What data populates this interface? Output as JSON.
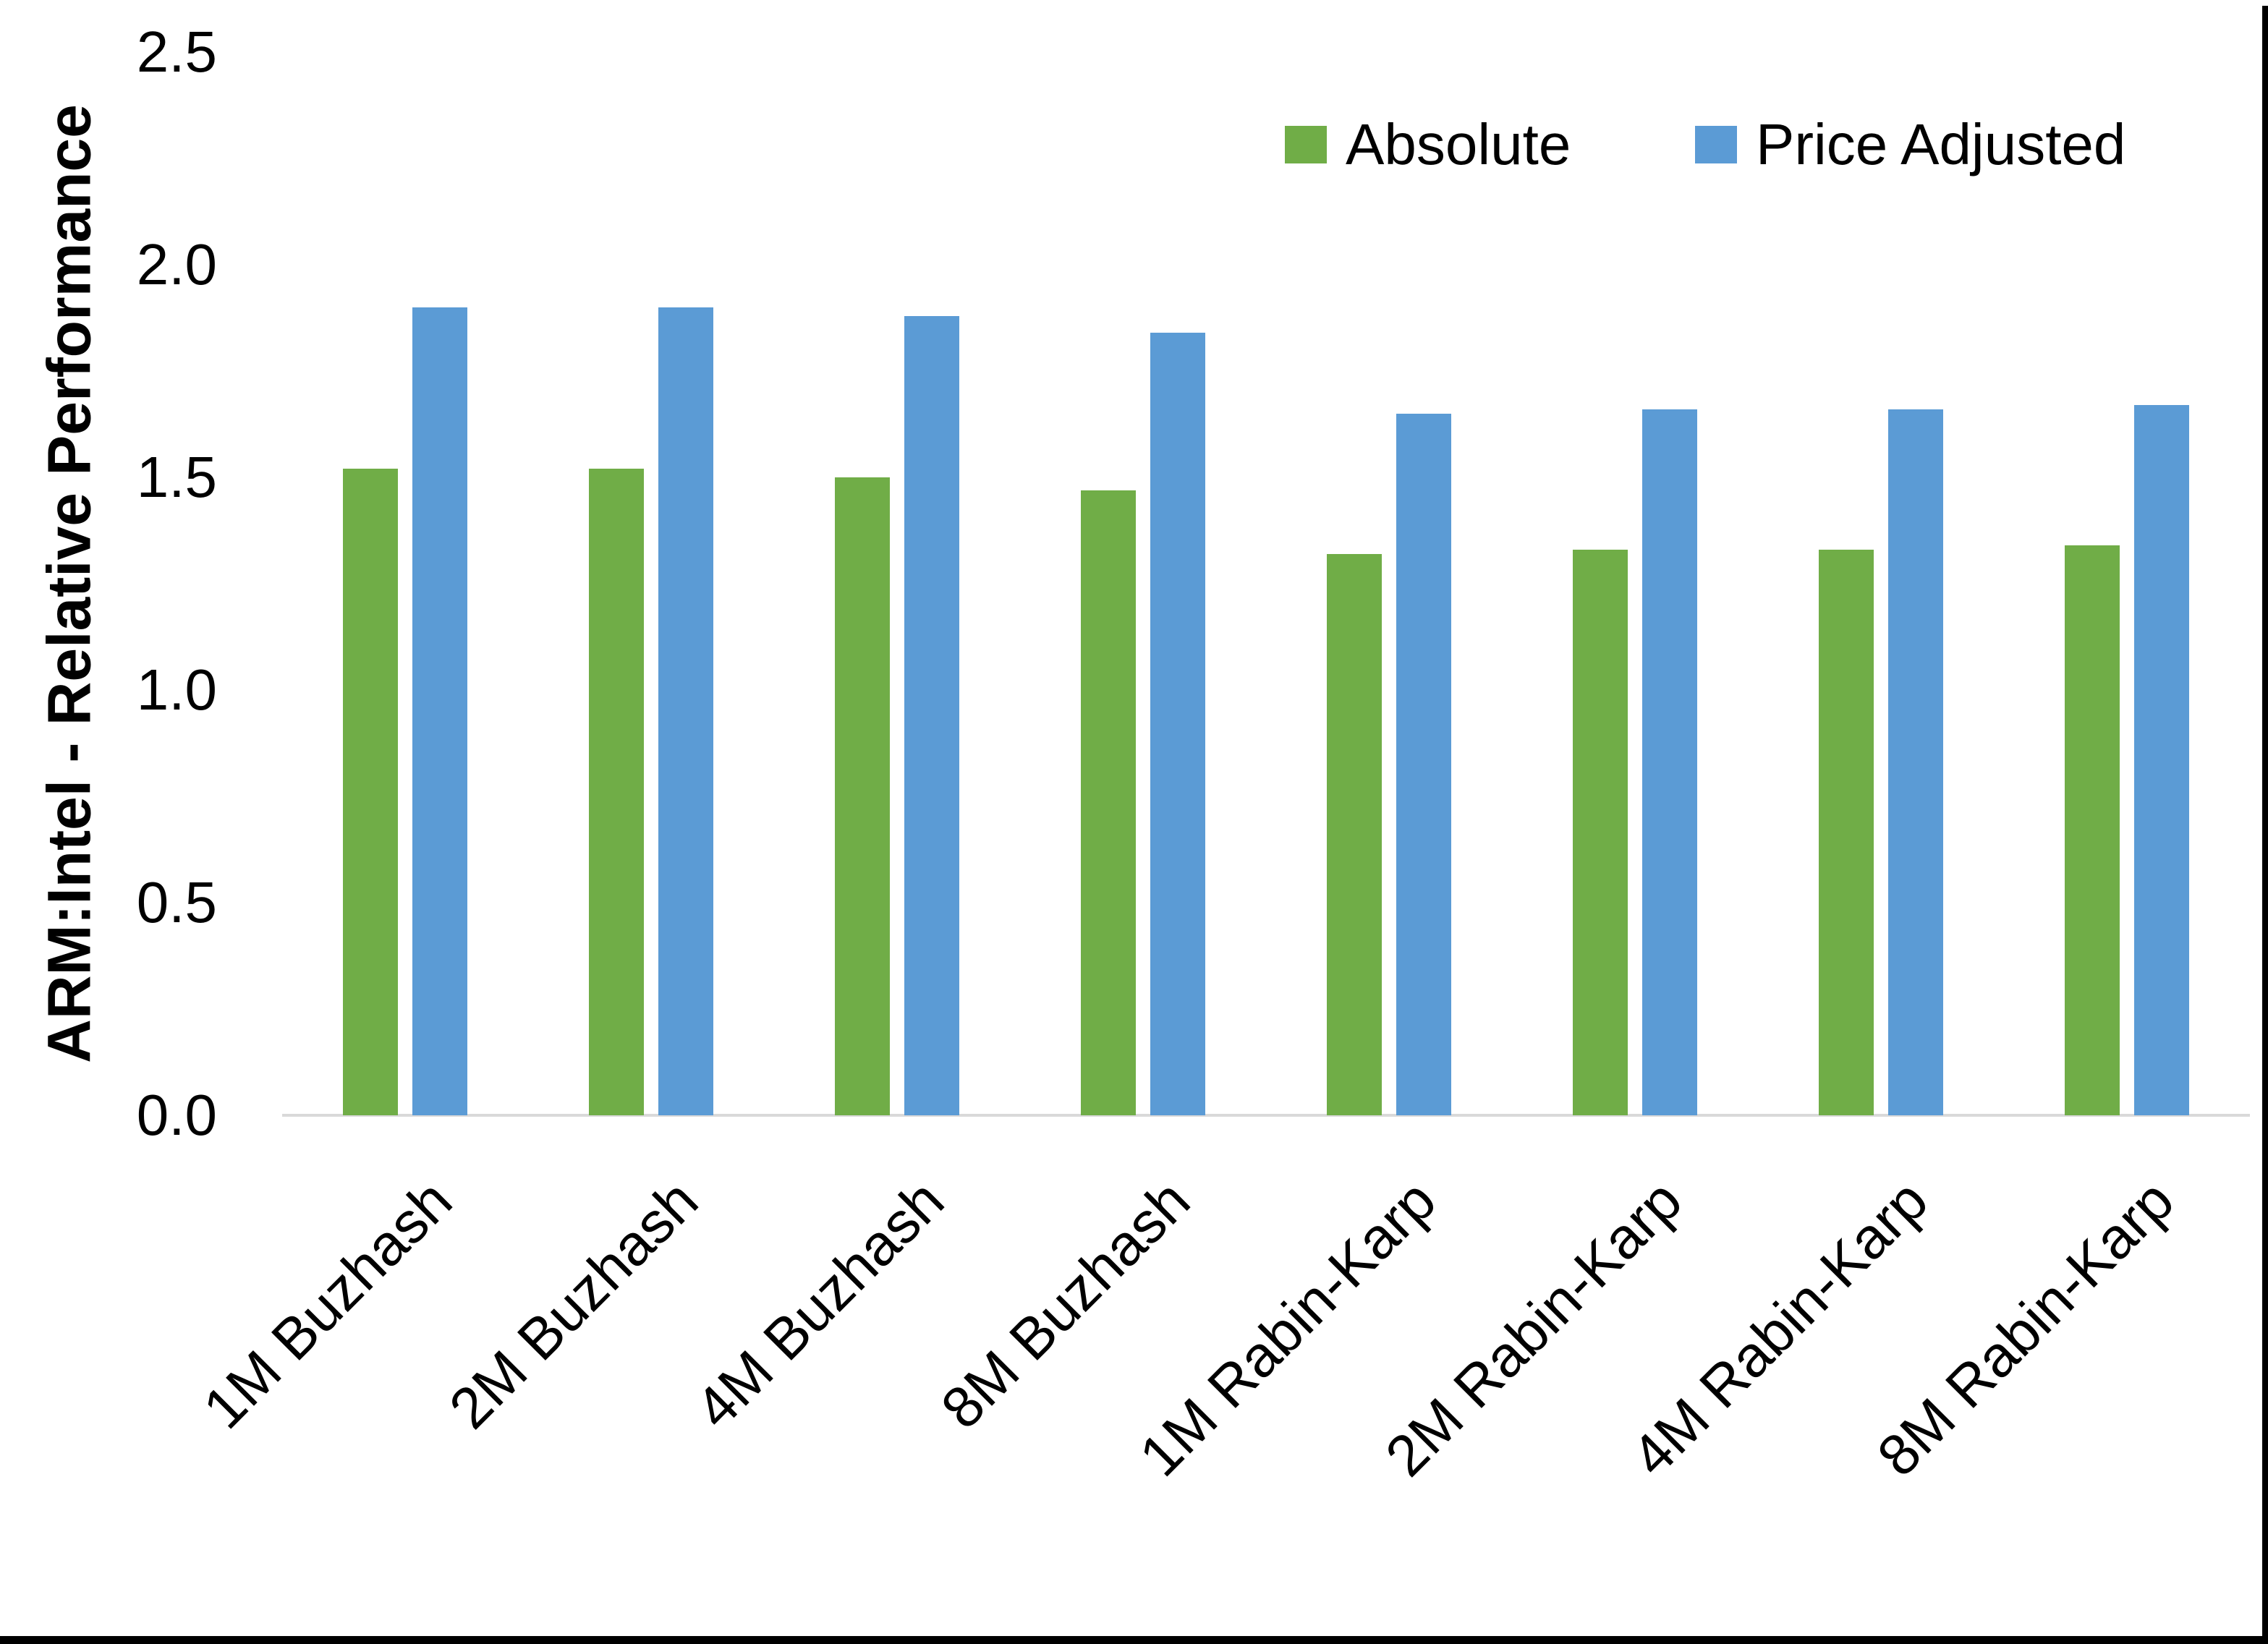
{
  "chart_data": {
    "type": "bar",
    "title": "",
    "xlabel": "",
    "ylabel": "ARM:Intel - Relative Performance",
    "ylim": [
      0,
      2.5
    ],
    "ytick_labels": [
      "0.0",
      "0.5",
      "1.0",
      "1.5",
      "2.0",
      "2.5"
    ],
    "ytick_values": [
      0,
      0.5,
      1.0,
      1.5,
      2.0,
      2.5
    ],
    "grid": false,
    "legend_position": "top-center-inside",
    "categories": [
      "1M Buzhash",
      "2M Buzhash",
      "4M Buzhash",
      "8M Buzhash",
      "1M Rabin-Karp",
      "2M Rabin-Karp",
      "4M Rabin-Karp",
      "8M Rabin-Karp"
    ],
    "series": [
      {
        "name": "Absolute",
        "color": "#70AD47",
        "values": [
          1.52,
          1.52,
          1.5,
          1.47,
          1.32,
          1.33,
          1.33,
          1.34
        ]
      },
      {
        "name": "Price Adjusted",
        "color": "#5B9BD5",
        "values": [
          1.9,
          1.9,
          1.88,
          1.84,
          1.65,
          1.66,
          1.66,
          1.67
        ]
      }
    ],
    "colors": {
      "background": "#FFFFFF",
      "text": "#000000",
      "baseline": "#D9D9D9",
      "frame_border": "#000000",
      "series_absolute": "#70AD47",
      "series_price_adjusted": "#5B9BD5"
    }
  }
}
